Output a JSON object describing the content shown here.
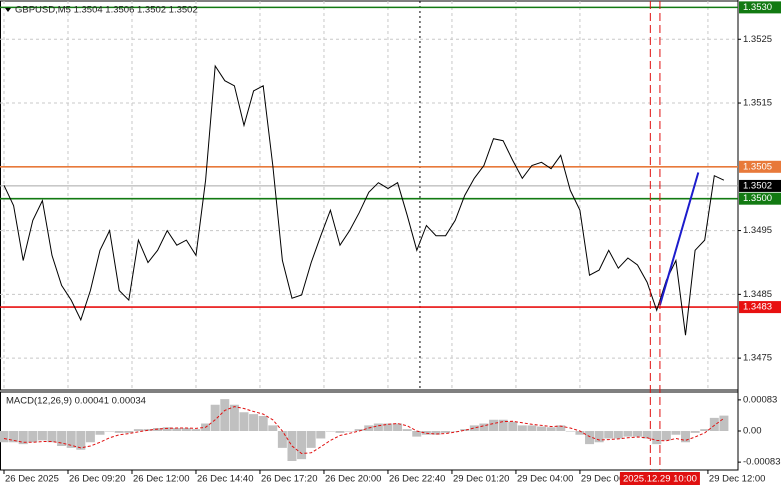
{
  "chart_data": [
    {
      "type": "line",
      "title": "GBPUSD,M5  1.3504 1.3506 1.3502 1.3502",
      "x": [
        0,
        3,
        6,
        9,
        12,
        15,
        18,
        21,
        24,
        27,
        30,
        33,
        36,
        39,
        42,
        45,
        48,
        51,
        54,
        57,
        60,
        63,
        66,
        69,
        72,
        75,
        78,
        81,
        84,
        87,
        90,
        93,
        96,
        99,
        102,
        105,
        108,
        111,
        114,
        117,
        120,
        123,
        126,
        129,
        132,
        135,
        138,
        141,
        144,
        147,
        150,
        153,
        156,
        159,
        162,
        165,
        168,
        171,
        174,
        177,
        180,
        183,
        186,
        189,
        192,
        195,
        198,
        201,
        204,
        207,
        210,
        213,
        216,
        219,
        222,
        225
      ],
      "xlim": [
        -1.25,
        229.4
      ],
      "xticks": [
        {
          "value": 0,
          "label": "26 Dec 2025"
        },
        {
          "value": 20,
          "label": "26 Dec 09:20"
        },
        {
          "value": 40,
          "label": "26 Dec 12:00"
        },
        {
          "value": 60,
          "label": "26 Dec 14:40"
        },
        {
          "value": 80,
          "label": "26 Dec 17:20"
        },
        {
          "value": 100,
          "label": "26 Dec 20:00"
        },
        {
          "value": 120,
          "label": "26 Dec 22:40"
        },
        {
          "value": 140,
          "label": "29 Dec 01:20"
        },
        {
          "value": 160,
          "label": "29 Dec 04:00"
        },
        {
          "value": 180,
          "label": "29 Dec 06:40"
        },
        {
          "value": 220,
          "label": "29 Dec 12:00"
        }
      ],
      "ylim": [
        1.347,
        1.3531
      ],
      "yticks": [
        1.3525,
        1.3515,
        1.3495,
        1.3485,
        1.3475
      ],
      "grid": true,
      "series": [
        {
          "color": "#000000",
          "values": [
            1.35021,
            1.34989,
            1.34903,
            1.34966,
            1.34997,
            1.34911,
            1.34864,
            1.34841,
            1.3481,
            1.34856,
            1.34919,
            1.3495,
            1.34856,
            1.34841,
            1.34935,
            1.349,
            1.34919,
            1.3495,
            1.34927,
            1.34935,
            1.34911,
            1.35029,
            1.35208,
            1.35185,
            1.35177,
            1.35115,
            1.35169,
            1.35177,
            1.35052,
            1.34903,
            1.34844,
            1.34849,
            1.349,
            1.34942,
            1.34982,
            1.34927,
            1.3495,
            1.34978,
            1.3501,
            1.35025,
            1.35016,
            1.35025,
            1.34974,
            1.34919,
            1.34958,
            1.34942,
            1.34942,
            1.34966,
            1.35005,
            1.35032,
            1.35052,
            1.35094,
            1.35091,
            1.3506,
            1.35032,
            1.35052,
            1.35057,
            1.35047,
            1.35068,
            1.35013,
            1.34982,
            1.3488,
            1.34888,
            1.34919,
            1.34891,
            1.34907,
            1.34896,
            1.34869,
            1.34825,
            1.34872,
            1.34903,
            1.34786,
            1.34919,
            1.34935,
            1.35036,
            1.35029
          ]
        }
      ],
      "levels": [
        {
          "value": 1.353,
          "label": "1.3530",
          "color": "#127a12"
        },
        {
          "value": 1.3505,
          "label": "1.3505",
          "color": "#e8793a"
        },
        {
          "value": 1.35,
          "label": "1.3500",
          "color": "#127a12"
        },
        {
          "value": 1.3483,
          "label": "1.3483",
          "color": "#e81010"
        }
      ],
      "last_price": {
        "value": 1.3502,
        "label": "1.3502",
        "color": "#000000"
      },
      "trend_line": {
        "x": [
          205,
          217
        ],
        "values": [
          1.34833,
          1.35041
        ],
        "color": "#1c1ccc"
      },
      "separators": [
        130
      ],
      "markers": {
        "x": [
          202,
          205
        ],
        "color": "#e01010"
      },
      "cursor_label": {
        "x": 205,
        "label": "2025.12.29 10:00"
      }
    },
    {
      "type": "macd",
      "title": "MACD(12,26,9) 0.00041 0.00034",
      "x": [
        0,
        3,
        6,
        9,
        12,
        15,
        18,
        21,
        24,
        27,
        30,
        33,
        36,
        39,
        42,
        45,
        48,
        51,
        54,
        57,
        60,
        63,
        66,
        69,
        72,
        75,
        78,
        81,
        84,
        87,
        90,
        93,
        96,
        99,
        102,
        105,
        108,
        111,
        114,
        117,
        120,
        123,
        126,
        129,
        132,
        135,
        138,
        141,
        144,
        147,
        150,
        153,
        156,
        159,
        162,
        165,
        168,
        171,
        174,
        177,
        180,
        183,
        186,
        189,
        192,
        195,
        198,
        201,
        204,
        207,
        210,
        213,
        216,
        219,
        222,
        225
      ],
      "xlim": [
        -1.25,
        229.4
      ],
      "ylim": [
        -0.00104,
        0.00104
      ],
      "yticks": [
        0.00083,
        {
          "value": 0,
          "label": "0.00"
        },
        -0.00083
      ],
      "histogram": {
        "color": "#c0c0c0",
        "values": [
          -0.0003,
          -0.0003,
          -0.00035,
          -0.0003,
          -0.00025,
          -0.0003,
          -0.0004,
          -0.00045,
          -0.0005,
          -0.0003,
          -0.0001,
          0,
          -5e-05,
          -5e-05,
          5e-05,
          5e-05,
          8e-05,
          0.0001,
          8e-05,
          8e-05,
          5e-05,
          0.0002,
          0.0007,
          0.00085,
          0.0007,
          0.0005,
          0.00045,
          0.0004,
          0.00015,
          -0.00045,
          -0.0008,
          -0.00075,
          -0.00045,
          -0.0002,
          0,
          -5e-05,
          0,
          5e-05,
          0.00015,
          0.0002,
          0.0002,
          0.0002,
          5e-05,
          -0.00015,
          -0.0001,
          -0.0001,
          -5e-05,
          0,
          5e-05,
          0.00015,
          0.0002,
          0.0003,
          0.0003,
          0.00025,
          0.00015,
          0.00015,
          0.00012,
          0.0001,
          0.00015,
          0,
          -0.0001,
          -0.00035,
          -0.0003,
          -0.0002,
          -0.0002,
          -0.00015,
          -0.00015,
          -0.0002,
          -0.00035,
          -0.00025,
          -0.0001,
          -0.0003,
          -5e-05,
          5e-05,
          0.00035,
          0.00041
        ]
      },
      "signal": {
        "color": "#e01010",
        "values": [
          -0.0002,
          -0.00025,
          -0.0003,
          -0.0003,
          -0.00028,
          -0.00028,
          -0.00032,
          -0.00038,
          -0.00045,
          -0.0004,
          -0.0003,
          -0.00018,
          -0.0001,
          -7e-05,
          -2e-05,
          2e-05,
          5e-05,
          7e-05,
          8e-05,
          8e-05,
          7e-05,
          0.0001,
          0.0003,
          0.00055,
          0.00065,
          0.0006,
          0.00052,
          0.00045,
          0.0003,
          0,
          -0.0004,
          -0.0006,
          -0.00058,
          -0.00042,
          -0.00025,
          -0.00012,
          -6e-05,
          0,
          8e-05,
          0.00014,
          0.00018,
          0.0002,
          0.00014,
          0,
          -6e-05,
          -8e-05,
          -7e-05,
          -3e-05,
          2e-05,
          8e-05,
          0.00014,
          0.0002,
          0.00025,
          0.00026,
          0.00022,
          0.00018,
          0.00015,
          0.00012,
          0.00013,
          8e-05,
          0,
          -0.00015,
          -0.00024,
          -0.00023,
          -0.00021,
          -0.00018,
          -0.00016,
          -0.00018,
          -0.00025,
          -0.00026,
          -0.0002,
          -0.00025,
          -0.00016,
          -5e-05,
          0.00015,
          0.00034
        ]
      }
    }
  ]
}
